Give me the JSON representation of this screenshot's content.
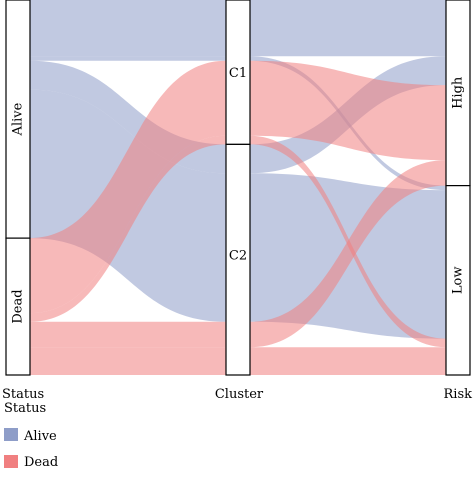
{
  "chart_data": {
    "type": "alluvial",
    "axes": [
      "Status",
      "Cluster",
      "Risk"
    ],
    "strata": {
      "Status": [
        {
          "label": "Alive",
          "value": 0.635
        },
        {
          "label": "Dead",
          "value": 0.365
        }
      ],
      "Cluster": [
        {
          "label": "C1",
          "value": 0.385
        },
        {
          "label": "C2",
          "value": 0.615
        }
      ],
      "Risk": [
        {
          "label": "High",
          "value": 0.495
        },
        {
          "label": "Low",
          "value": 0.505
        }
      ]
    },
    "flows": [
      {
        "status": "Alive",
        "cluster": "C1",
        "risk": "High",
        "value": 0.15
      },
      {
        "status": "Alive",
        "cluster": "C1",
        "risk": "Low",
        "value": 0.012
      },
      {
        "status": "Alive",
        "cluster": "C2",
        "risk": "High",
        "value": 0.077
      },
      {
        "status": "Alive",
        "cluster": "C2",
        "risk": "Low",
        "value": 0.396
      },
      {
        "status": "Dead",
        "cluster": "C1",
        "risk": "High",
        "value": 0.2
      },
      {
        "status": "Dead",
        "cluster": "C1",
        "risk": "Low",
        "value": 0.023
      },
      {
        "status": "Dead",
        "cluster": "C2",
        "risk": "High",
        "value": 0.068
      },
      {
        "status": "Dead",
        "cluster": "C2",
        "risk": "Low",
        "value": 0.074
      }
    ],
    "colors": {
      "Alive": "#8e9dc8",
      "Dead": "#f07f80"
    },
    "legend": {
      "title": "Status",
      "position": "bottom-left",
      "items": [
        {
          "label": "Alive",
          "color": "#8e9dc8"
        },
        {
          "label": "Dead",
          "color": "#f07f80"
        }
      ]
    },
    "grid": false
  }
}
